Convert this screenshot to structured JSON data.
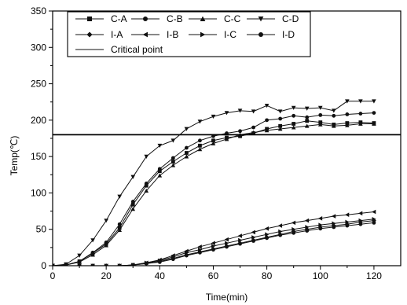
{
  "chart_data": {
    "type": "line",
    "xlabel": "Time(min)",
    "ylabel": "Temp(℃)",
    "xlim": [
      0,
      130
    ],
    "ylim": [
      0,
      350
    ],
    "xticks": [
      0,
      20,
      40,
      60,
      80,
      100,
      120
    ],
    "yticks": [
      0,
      50,
      100,
      150,
      200,
      250,
      300,
      350
    ],
    "grid": false,
    "legend": {
      "position": "top-left",
      "rows": [
        [
          "C-A",
          "C-B",
          "C-C",
          "C-D"
        ],
        [
          "I-A",
          "I-B",
          "I-C",
          "I-D"
        ],
        [
          "Critical point"
        ]
      ]
    },
    "critical_point": 180,
    "series": [
      {
        "name": "C-A",
        "marker": "square",
        "x": [
          0,
          5,
          10,
          15,
          20,
          25,
          30,
          35,
          40,
          45,
          50,
          55,
          60,
          65,
          70,
          75,
          80,
          85,
          90,
          95,
          100,
          105,
          110,
          115,
          120
        ],
        "y": [
          0,
          1,
          6,
          17,
          30,
          52,
          84,
          110,
          130,
          143,
          155,
          165,
          172,
          176,
          178,
          182,
          188,
          192,
          195,
          199,
          197,
          194,
          196,
          197,
          196
        ]
      },
      {
        "name": "C-B",
        "marker": "circle",
        "x": [
          0,
          5,
          10,
          15,
          20,
          25,
          30,
          35,
          40,
          45,
          50,
          55,
          60,
          65,
          70,
          75,
          80,
          85,
          90,
          95,
          100,
          105,
          110,
          115,
          120
        ],
        "y": [
          0,
          1,
          6,
          18,
          32,
          57,
          88,
          113,
          133,
          148,
          162,
          172,
          178,
          182,
          185,
          190,
          200,
          202,
          206,
          204,
          207,
          206,
          208,
          209,
          210
        ]
      },
      {
        "name": "C-C",
        "marker": "triangle-up",
        "x": [
          0,
          5,
          10,
          15,
          20,
          25,
          30,
          35,
          40,
          45,
          50,
          55,
          60,
          65,
          70,
          75,
          80,
          85,
          90,
          95,
          100,
          105,
          110,
          115,
          120
        ],
        "y": [
          0,
          1,
          5,
          15,
          28,
          49,
          78,
          103,
          124,
          138,
          150,
          160,
          168,
          174,
          180,
          183,
          186,
          188,
          190,
          192,
          194,
          192,
          193,
          195,
          195
        ]
      },
      {
        "name": "C-D",
        "marker": "triangle-down",
        "x": [
          0,
          5,
          10,
          15,
          20,
          25,
          30,
          35,
          40,
          45,
          50,
          55,
          60,
          65,
          70,
          75,
          80,
          85,
          90,
          95,
          100,
          105,
          110,
          115,
          120
        ],
        "y": [
          0,
          2,
          14,
          35,
          62,
          95,
          122,
          150,
          165,
          172,
          188,
          198,
          205,
          210,
          213,
          212,
          220,
          212,
          217,
          216,
          217,
          213,
          226,
          226,
          226
        ]
      },
      {
        "name": "I-A",
        "marker": "diamond",
        "x": [
          0,
          5,
          10,
          15,
          20,
          25,
          30,
          35,
          40,
          45,
          50,
          55,
          60,
          65,
          70,
          75,
          80,
          85,
          90,
          95,
          100,
          105,
          110,
          115,
          120
        ],
        "y": [
          0,
          0,
          0,
          0,
          0,
          0,
          1,
          3,
          6,
          10,
          15,
          19,
          23,
          27,
          31,
          35,
          39,
          43,
          47,
          50,
          53,
          55,
          57,
          60,
          62
        ]
      },
      {
        "name": "I-B",
        "marker": "triangle-left",
        "x": [
          0,
          5,
          10,
          15,
          20,
          25,
          30,
          35,
          40,
          45,
          50,
          55,
          60,
          65,
          70,
          75,
          80,
          85,
          90,
          95,
          100,
          105,
          110,
          115,
          120
        ],
        "y": [
          0,
          0,
          0,
          0,
          0,
          0,
          1,
          4,
          8,
          14,
          20,
          26,
          31,
          36,
          41,
          46,
          51,
          55,
          59,
          62,
          65,
          68,
          70,
          72,
          74
        ]
      },
      {
        "name": "I-C",
        "marker": "triangle-right",
        "x": [
          0,
          5,
          10,
          15,
          20,
          25,
          30,
          35,
          40,
          45,
          50,
          55,
          60,
          65,
          70,
          75,
          80,
          85,
          90,
          95,
          100,
          105,
          110,
          115,
          120
        ],
        "y": [
          0,
          0,
          0,
          0,
          0,
          0,
          1,
          4,
          7,
          12,
          18,
          22,
          27,
          31,
          35,
          39,
          43,
          47,
          50,
          53,
          56,
          58,
          60,
          62,
          64
        ]
      },
      {
        "name": "I-D",
        "marker": "circle",
        "x": [
          0,
          5,
          10,
          15,
          20,
          25,
          30,
          35,
          40,
          45,
          50,
          55,
          60,
          65,
          70,
          75,
          80,
          85,
          90,
          95,
          100,
          105,
          110,
          115,
          120
        ],
        "y": [
          0,
          0,
          0,
          0,
          0,
          0,
          1,
          3,
          5,
          9,
          14,
          18,
          22,
          26,
          30,
          34,
          38,
          42,
          45,
          48,
          51,
          53,
          55,
          57,
          59
        ]
      }
    ],
    "colors": {
      "series": "#111111",
      "axis": "#000000",
      "background": "#ffffff"
    }
  }
}
